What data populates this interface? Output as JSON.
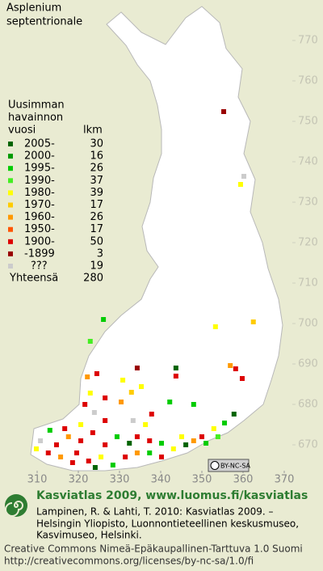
{
  "map": {
    "title_lines": [
      "Asplenium",
      "septentrionale"
    ],
    "legend": {
      "header_lines": [
        "Uusimman",
        "havainnon",
        "vuosi"
      ],
      "count_header": "lkm",
      "rows": [
        {
          "label": "2005-",
          "count": 30,
          "color": "#006400"
        },
        {
          "label": "2000-",
          "count": 16,
          "color": "#009a00"
        },
        {
          "label": "1995-",
          "count": 26,
          "color": "#00cc00"
        },
        {
          "label": "1990-",
          "count": 37,
          "color": "#44ee22"
        },
        {
          "label": "1980-",
          "count": 39,
          "color": "#ffff00"
        },
        {
          "label": "1970-",
          "count": 17,
          "color": "#ffcc00"
        },
        {
          "label": "1960-",
          "count": 26,
          "color": "#ff9900"
        },
        {
          "label": "1950-",
          "count": 17,
          "color": "#ff5500"
        },
        {
          "label": "1900-",
          "count": 50,
          "color": "#dd0000"
        },
        {
          "label": "-1899",
          "count": 3,
          "color": "#990000"
        },
        {
          "label": "???",
          "count": 19,
          "color": "#cccccc"
        }
      ],
      "total_label": "Yhteensä",
      "total": 280
    },
    "y_ticks": [
      770,
      760,
      750,
      740,
      730,
      720,
      710,
      700,
      690,
      680,
      670
    ],
    "x_ticks": [
      310,
      320,
      330,
      340,
      350,
      360,
      370
    ],
    "license_badge": "BY-NC-SA",
    "dots": [
      [
        355.3,
        752.4,
        9
      ],
      [
        360.2,
        736.4,
        10
      ],
      [
        359.4,
        734.4,
        4
      ],
      [
        326.1,
        701,
        2
      ],
      [
        353.3,
        699.2,
        4
      ],
      [
        362.5,
        700.4,
        5
      ],
      [
        322.9,
        695.6,
        3
      ],
      [
        334.3,
        689,
        9
      ],
      [
        343.7,
        689,
        0
      ],
      [
        343.7,
        687,
        8
      ],
      [
        356.9,
        689.6,
        6
      ],
      [
        358.2,
        688.8,
        8
      ],
      [
        359.8,
        686.4,
        8
      ],
      [
        324.5,
        687.6,
        8
      ],
      [
        322.2,
        686.8,
        6
      ],
      [
        330.8,
        686,
        4
      ],
      [
        335.3,
        684.4,
        4
      ],
      [
        332.9,
        683,
        5
      ],
      [
        326.5,
        681.6,
        8
      ],
      [
        322.9,
        682.8,
        4
      ],
      [
        321.6,
        680,
        8
      ],
      [
        323.9,
        678,
        10
      ],
      [
        330.4,
        680.6,
        6
      ],
      [
        337.8,
        677.6,
        8
      ],
      [
        342.2,
        680.6,
        2
      ],
      [
        348,
        680,
        2
      ],
      [
        357.8,
        677.6,
        0
      ],
      [
        355.5,
        675.4,
        2
      ],
      [
        352.9,
        674,
        4
      ],
      [
        350,
        672,
        8
      ],
      [
        348,
        671,
        6
      ],
      [
        345.1,
        672,
        4
      ],
      [
        340.2,
        670.4,
        2
      ],
      [
        337.3,
        671,
        8
      ],
      [
        334.3,
        672,
        8
      ],
      [
        332.4,
        670.4,
        0
      ],
      [
        329.4,
        672,
        2
      ],
      [
        326.5,
        670,
        8
      ],
      [
        323.5,
        673,
        8
      ],
      [
        320.6,
        671,
        8
      ],
      [
        317.6,
        672,
        6
      ],
      [
        314.7,
        670,
        8
      ],
      [
        312.7,
        668,
        8
      ],
      [
        310.8,
        671,
        10
      ],
      [
        309.8,
        669,
        4
      ],
      [
        315.7,
        667,
        6
      ],
      [
        319.6,
        668,
        8
      ],
      [
        322.5,
        666,
        8
      ],
      [
        325.5,
        667,
        4
      ],
      [
        328.4,
        665,
        2
      ],
      [
        331.4,
        667,
        8
      ],
      [
        334.3,
        668,
        6
      ],
      [
        337.3,
        668,
        2
      ],
      [
        340.2,
        667,
        8
      ],
      [
        343.1,
        669,
        4
      ],
      [
        346.1,
        670,
        0
      ],
      [
        351,
        670.4,
        2
      ],
      [
        353.9,
        672,
        3
      ],
      [
        324.1,
        664.4,
        0
      ],
      [
        318.6,
        665.6,
        8
      ],
      [
        313.1,
        673.6,
        2
      ],
      [
        316.7,
        674,
        8
      ],
      [
        320.6,
        675,
        4
      ],
      [
        326.5,
        676,
        8
      ],
      [
        333.3,
        676,
        10
      ],
      [
        336.3,
        675,
        4
      ]
    ]
  },
  "footer": {
    "site_title": "Kasviatlas 2009, www.luomus.fi/kasviatlas",
    "citation_lines": [
      "Lampinen, R. & Lahti, T. 2010: Kasviatlas 2009. –",
      "Helsingin Yliopisto, Luonnontieteellinen keskusmuseo,",
      "Kasvimuseo, Helsinki."
    ],
    "license_lines": [
      "Creative Commons Nimeä-Epäkaupallinen-Tarttuva 1.0 Suomi",
      "http://creativecommons.org/licenses/by-nc-sa/1.0/fi"
    ]
  }
}
